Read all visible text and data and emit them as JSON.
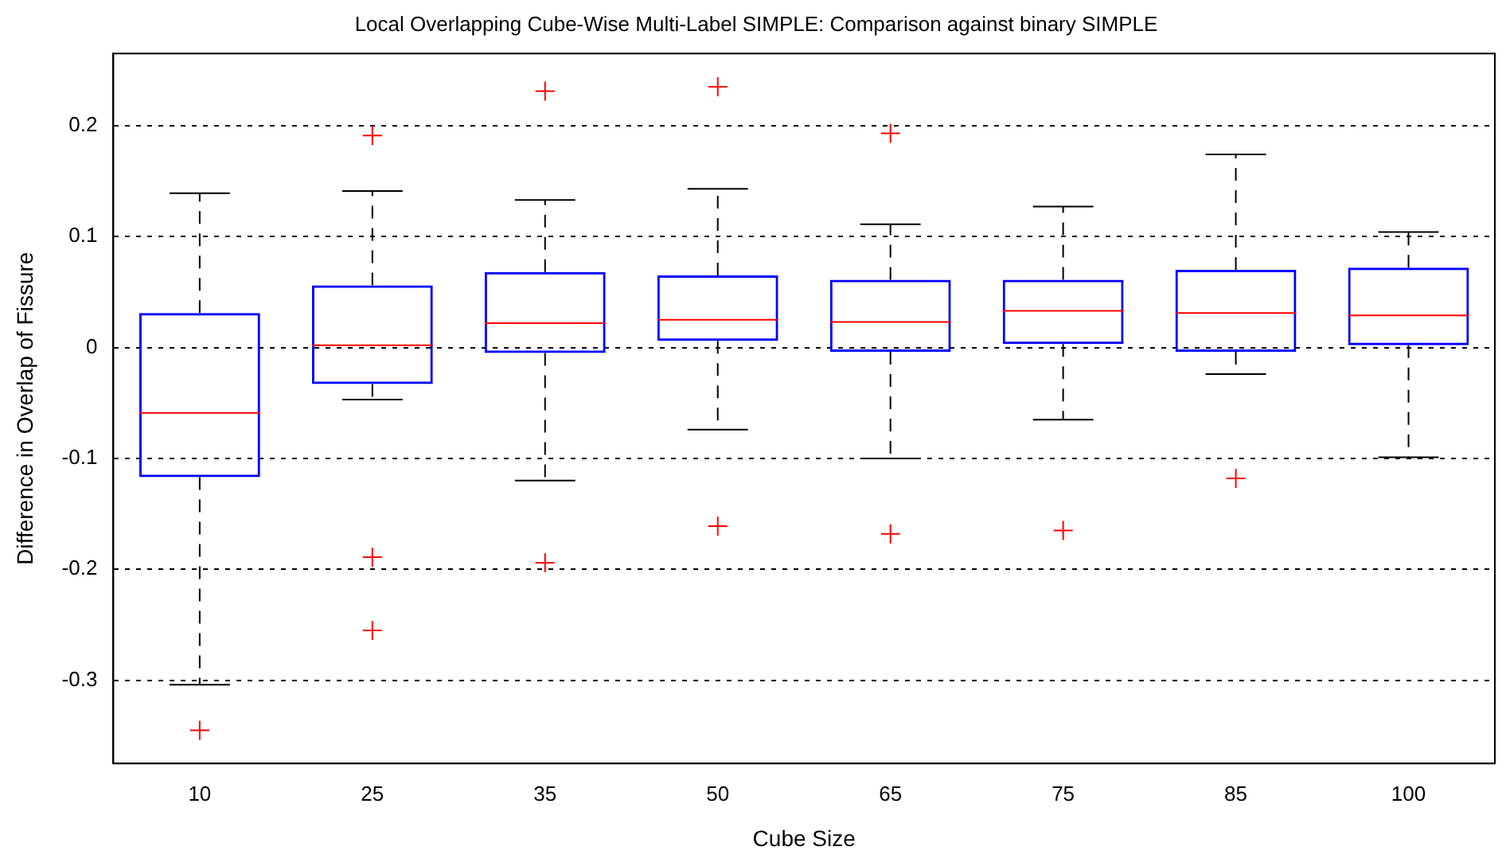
{
  "chart_data": {
    "type": "box",
    "title": "Local Overlapping Cube-Wise Multi-Label SIMPLE: Comparison against binary SIMPLE",
    "xlabel": "Cube Size",
    "ylabel": "Difference in Overlap of Fissure",
    "categories": [
      "10",
      "25",
      "35",
      "50",
      "65",
      "75",
      "85",
      "100"
    ],
    "color": "#0000ff",
    "boxes": [
      {
        "low": -0.304,
        "q1": -0.117,
        "median": -0.059,
        "q3": 0.031,
        "high": 0.139,
        "outliers": [
          -0.345
        ]
      },
      {
        "low": -0.047,
        "q1": -0.033,
        "median": 0.002,
        "q3": 0.056,
        "high": 0.141,
        "outliers": [
          0.191,
          -0.189,
          -0.255
        ]
      },
      {
        "low": -0.12,
        "q1": -0.005,
        "median": 0.022,
        "q3": 0.068,
        "high": 0.133,
        "outliers": [
          0.231,
          -0.194
        ]
      },
      {
        "low": -0.074,
        "q1": 0.006,
        "median": 0.025,
        "q3": 0.065,
        "high": 0.143,
        "outliers": [
          0.235,
          -0.161
        ]
      },
      {
        "low": -0.1,
        "q1": -0.004,
        "median": 0.023,
        "q3": 0.061,
        "high": 0.111,
        "outliers": [
          0.193,
          -0.168
        ]
      },
      {
        "low": -0.065,
        "q1": 0.003,
        "median": 0.033,
        "q3": 0.061,
        "high": 0.127,
        "outliers": [
          -0.165
        ]
      },
      {
        "low": -0.024,
        "q1": -0.004,
        "median": 0.031,
        "q3": 0.07,
        "high": 0.174,
        "outliers": [
          -0.118
        ]
      },
      {
        "low": -0.099,
        "q1": 0.002,
        "median": 0.029,
        "q3": 0.072,
        "high": 0.104
      }
    ],
    "ylim": [
      -0.375,
      0.265
    ],
    "yticks": [
      {
        "value": -0.3,
        "label": "-0.3"
      },
      {
        "value": -0.2,
        "label": "-0.2"
      },
      {
        "value": -0.1,
        "label": "-0.1"
      },
      {
        "value": 0,
        "label": "0"
      },
      {
        "value": 0.1,
        "label": "0.1"
      },
      {
        "value": 0.2,
        "label": "0.2"
      }
    ],
    "grid": "y",
    "marker": "cross"
  }
}
